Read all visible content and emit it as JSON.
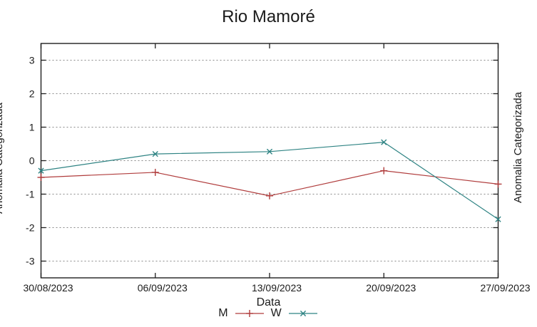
{
  "chart_data": {
    "type": "line",
    "title": "Rio Mamoré",
    "xlabel": "Data",
    "ylabel": "Anomalia Categorizada",
    "categories": [
      "30/08/2023",
      "06/09/2023",
      "13/09/2023",
      "20/09/2023",
      "27/09/2023"
    ],
    "series": [
      {
        "name": "M",
        "color": "#b03c3c",
        "marker": "plus",
        "values": [
          -0.5,
          -0.35,
          -1.05,
          -0.3,
          -0.7
        ]
      },
      {
        "name": "W",
        "color": "#2e8383",
        "marker": "cross",
        "values": [
          -0.3,
          0.2,
          0.27,
          0.55,
          -1.75
        ]
      }
    ],
    "ylim": [
      -3.5,
      3.5
    ],
    "yticks": [
      -3,
      -2,
      -1,
      0,
      1,
      2,
      3
    ],
    "grid": "horizontal-dotted",
    "legend_position": "bottom-center",
    "colors": {
      "axis_border": "#1f1f1f",
      "gridline": "#8a8a8a",
      "text": "#1b1b1b"
    }
  },
  "adjacent_panel": {
    "ylabel": "Anomalia Categorizada"
  }
}
